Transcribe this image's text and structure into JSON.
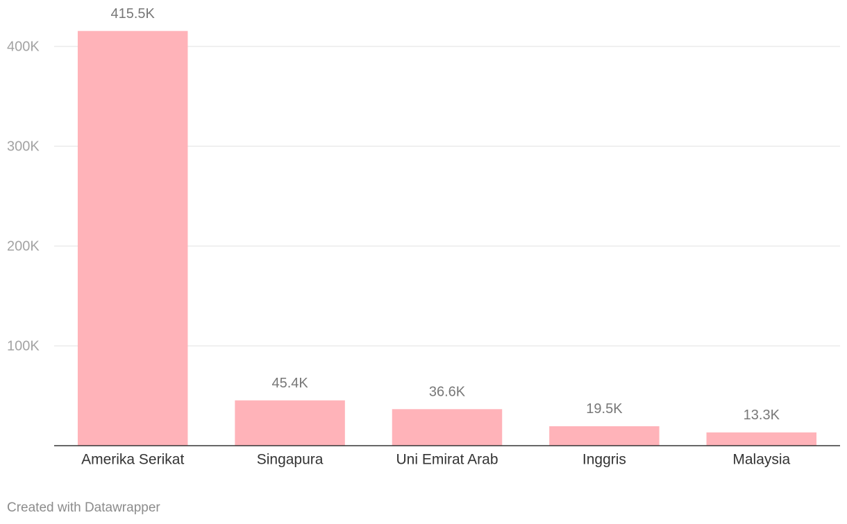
{
  "chart_data": {
    "type": "bar",
    "categories": [
      "Amerika Serikat",
      "Singapura",
      "Uni Emirat Arab",
      "Inggris",
      "Malaysia"
    ],
    "values": [
      415500,
      45400,
      36600,
      19500,
      13300
    ],
    "value_labels": [
      "415.5K",
      "45.4K",
      "36.6K",
      "19.5K",
      "13.3K"
    ],
    "color": "#ffb3b9",
    "ylim": [
      0,
      440000
    ],
    "yticks": [
      {
        "value": 100000,
        "label": "100K"
      },
      {
        "value": 200000,
        "label": "200K"
      },
      {
        "value": 300000,
        "label": "300K"
      },
      {
        "value": 400000,
        "label": "400K"
      }
    ],
    "grid": true,
    "credit": "Created with Datawrapper"
  }
}
